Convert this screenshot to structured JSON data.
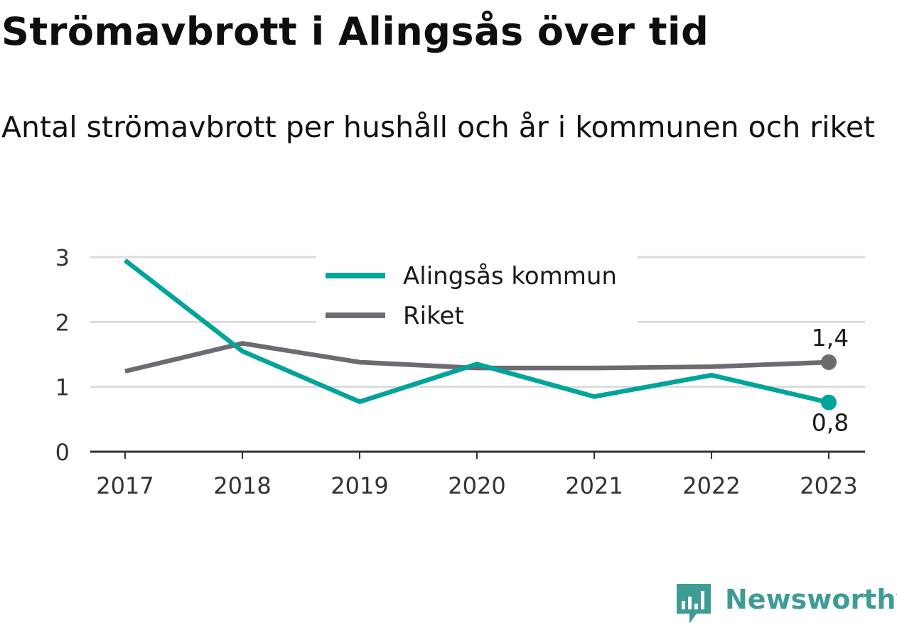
{
  "title": "Strömavbrott i Alingsås över tid",
  "subtitle": "Antal strömavbrott per hushåll och år i kommunen och riket",
  "brand": {
    "name": "Newsworthy",
    "color": "#3f9c95",
    "icon": "bar-chart-badge-icon"
  },
  "chart_data": {
    "type": "line",
    "x": [
      "2017",
      "2018",
      "2019",
      "2020",
      "2021",
      "2022",
      "2023"
    ],
    "ylim": [
      0,
      3
    ],
    "yticks": [
      0,
      1,
      2,
      3
    ],
    "grid": true,
    "legend_position": "top-center",
    "series": [
      {
        "name": "Alingsås kommun",
        "color": "#00a49a",
        "values": [
          2.95,
          1.55,
          0.77,
          1.35,
          0.85,
          1.18,
          0.76
        ],
        "end_label": "0,8"
      },
      {
        "name": "Riket",
        "color": "#6c6b71",
        "values": [
          1.24,
          1.67,
          1.38,
          1.29,
          1.29,
          1.31,
          1.38
        ],
        "end_label": "1,4"
      }
    ]
  }
}
